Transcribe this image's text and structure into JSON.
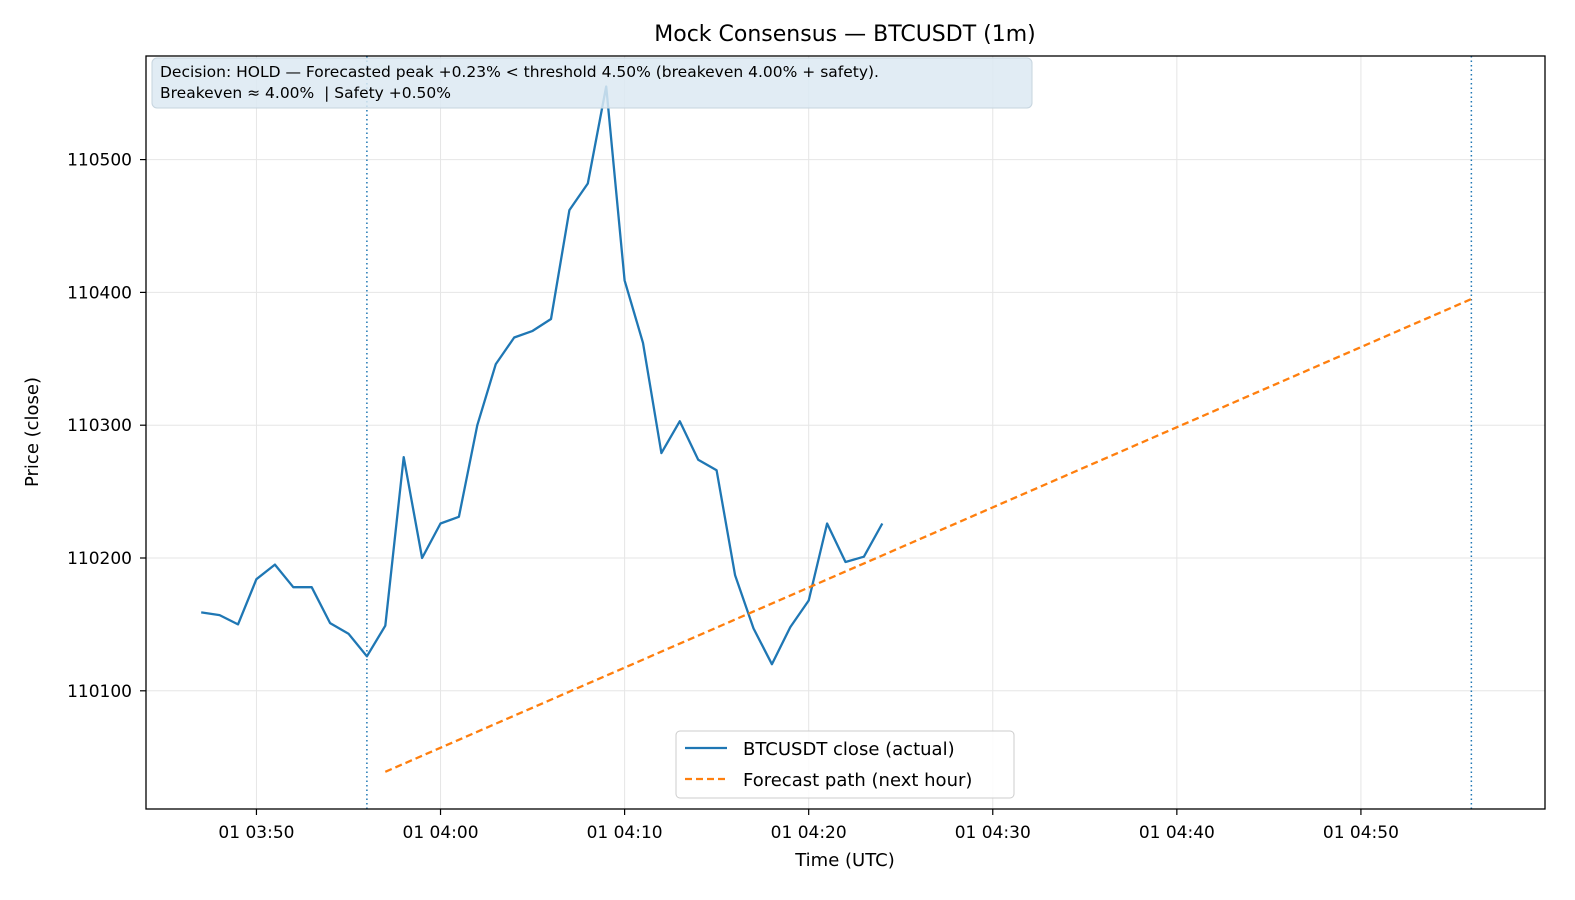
{
  "chart_data": {
    "type": "line",
    "title": "Mock Consensus — BTCUSDT (1m)",
    "xlabel": "Time (UTC)",
    "ylabel": "Price (close)",
    "x_range": [
      "01 03:44",
      "01 05:00"
    ],
    "ylim": [
      110011,
      110578
    ],
    "grid": true,
    "legend_position": "lower-center",
    "x_ticks": [
      "01 03:50",
      "01 04:00",
      "01 04:10",
      "01 04:20",
      "01 04:30",
      "01 04:40",
      "01 04:50"
    ],
    "y_ticks": [
      110100,
      110200,
      110300,
      110400,
      110500
    ],
    "vertical_markers": [
      "01 03:56",
      "01 04:56"
    ],
    "annotation": {
      "lines": [
        "Decision: HOLD — Forecasted peak +0.23% < threshold 4.50% (breakeven 4.00% + safety).",
        "Breakeven ≈ 4.00%  | Safety +0.50%"
      ]
    },
    "series": [
      {
        "name": "BTCUSDT close (actual)",
        "color": "#1f77b4",
        "style": "solid",
        "x": [
          "01 03:47",
          "01 03:48",
          "01 03:49",
          "01 03:50",
          "01 03:51",
          "01 03:52",
          "01 03:53",
          "01 03:54",
          "01 03:55",
          "01 03:56",
          "01 03:57",
          "01 03:58",
          "01 03:59",
          "01 04:00",
          "01 04:01",
          "01 04:02",
          "01 04:03",
          "01 04:04",
          "01 04:05",
          "01 04:06",
          "01 04:07",
          "01 04:08",
          "01 04:09",
          "01 04:10",
          "01 04:11",
          "01 04:12",
          "01 04:13",
          "01 04:14",
          "01 04:15",
          "01 04:16",
          "01 04:17",
          "01 04:18",
          "01 04:19",
          "01 04:20",
          "01 04:21",
          "01 04:22",
          "01 04:23",
          "01 04:24"
        ],
        "y": [
          110159,
          110157,
          110150,
          110184,
          110195,
          110178,
          110178,
          110151,
          110143,
          110126,
          110149,
          110276,
          110200,
          110226,
          110231,
          110300,
          110346,
          110366,
          110371,
          110380,
          110462,
          110482,
          110555,
          110409,
          110362,
          110279,
          110303,
          110274,
          110266,
          110187,
          110147,
          110120,
          110148,
          110168,
          110226,
          110197,
          110201,
          110226
        ]
      },
      {
        "name": "Forecast path (next hour)",
        "color": "#ff7f0e",
        "style": "dashed",
        "x": [
          "01 03:57",
          "01 04:56"
        ],
        "y": [
          110039,
          110395
        ]
      }
    ]
  }
}
